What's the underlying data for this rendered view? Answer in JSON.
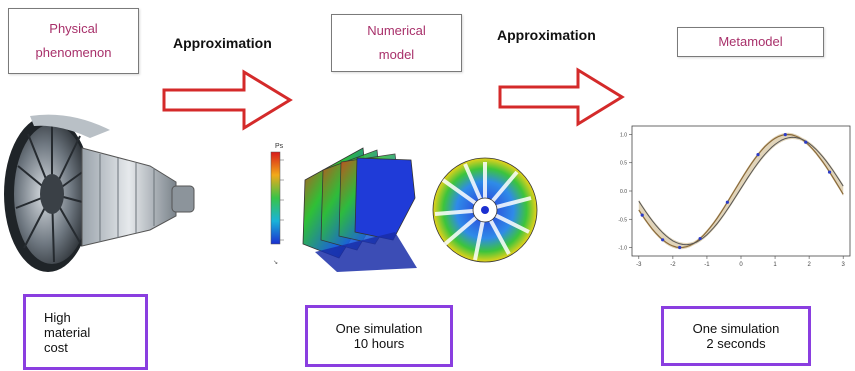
{
  "stages": [
    {
      "label": "Physical\nphenomenon",
      "cost": "High\n  material\n    cost"
    },
    {
      "label": "Numerical\nmodel",
      "cost": "One simulation\n10 hours"
    },
    {
      "label": "Metamodel",
      "cost": "One simulation\n2 seconds"
    }
  ],
  "arrows": [
    {
      "label": "Approximation"
    },
    {
      "label": "Approximation"
    }
  ],
  "colors": {
    "stage_text": "#a8306a",
    "arrow_outline": "#d42a2a",
    "cost_border": "#8a3ee0"
  },
  "icons": [
    "jet-engine-image",
    "cfd-simulation-image",
    "metamodel-plot-image"
  ],
  "metamodel_plot": {
    "type": "line",
    "x_ticks": [
      "-3",
      "-2",
      "-1",
      "0",
      "1",
      "2",
      "3"
    ],
    "y_ticks": [
      "1.0",
      "0.5",
      "0.0",
      "-0.5",
      "-1.0"
    ],
    "xlim": [
      -3.2,
      3.2
    ],
    "ylim": [
      -1.15,
      1.15
    ]
  },
  "colorbar_label": "Ps"
}
